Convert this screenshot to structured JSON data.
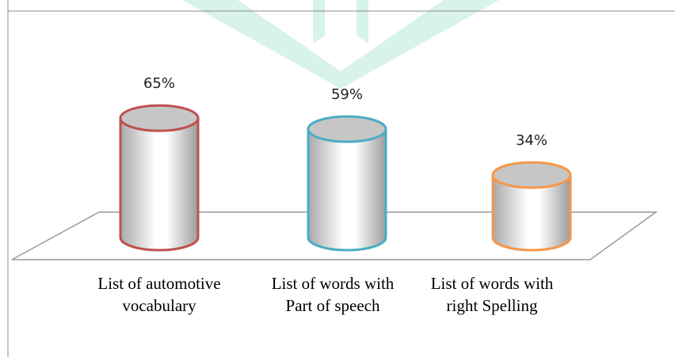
{
  "chart_data": {
    "type": "cylinder",
    "categories": [
      "List of automotive\nvocabulary",
      "List of words with\nPart of speech",
      "List of words with\nright Spelling"
    ],
    "values": [
      65,
      59,
      34
    ],
    "value_labels": [
      "65%",
      "59%",
      "34%"
    ],
    "colors": [
      "#c0504d",
      "#4bacc6",
      "#f79646"
    ]
  }
}
